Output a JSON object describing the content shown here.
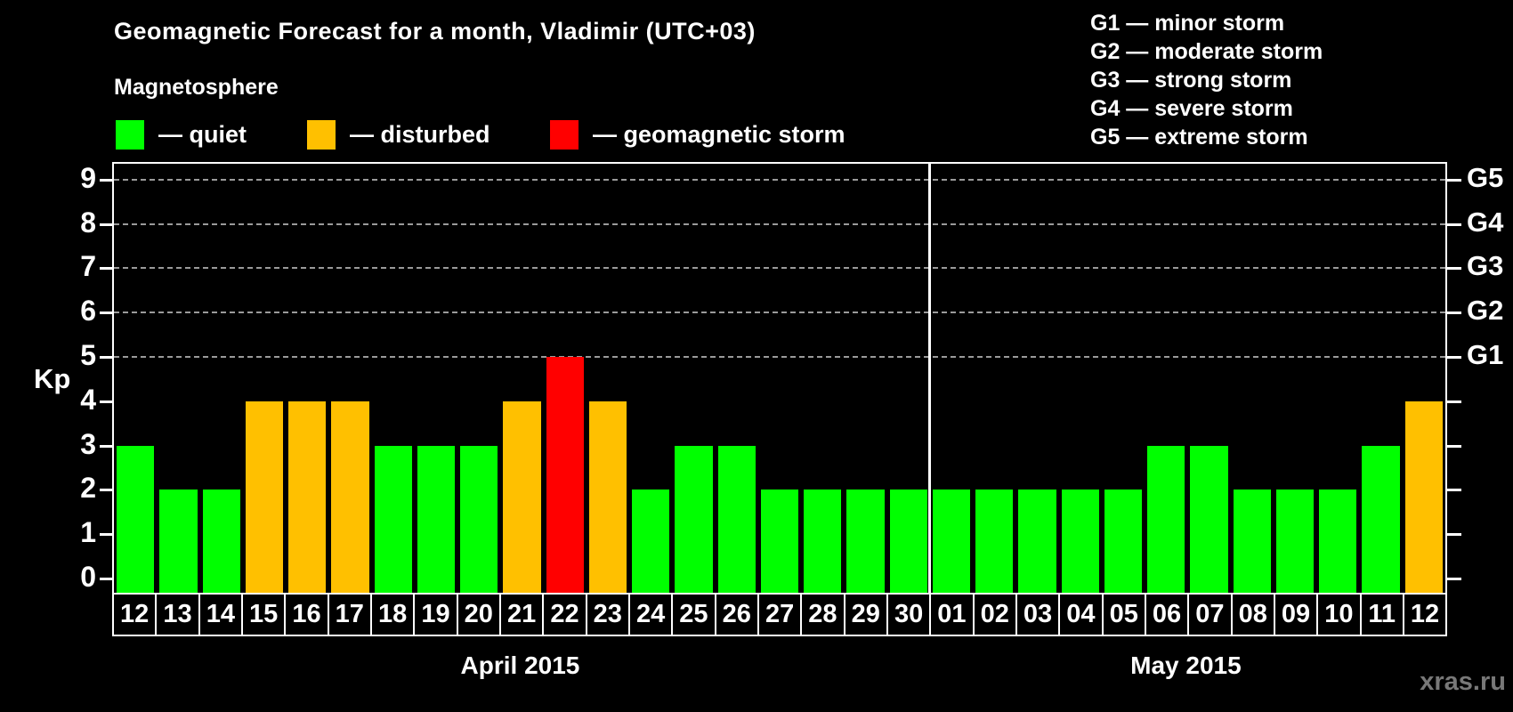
{
  "header": {
    "title": "Geomagnetic Forecast for a month, Vladimir (UTC+03)"
  },
  "legend": {
    "heading": "Magnetosphere",
    "items": [
      {
        "status": "quiet",
        "label": "— quiet"
      },
      {
        "status": "disturbed",
        "label": "— disturbed"
      },
      {
        "status": "storm",
        "label": "— geomagnetic storm"
      }
    ]
  },
  "g_scale_legend": [
    "G1 — minor storm",
    "G2 — moderate storm",
    "G3 — strong storm",
    "G4 — severe storm",
    "G5 — extreme storm"
  ],
  "axes": {
    "y_label": "Kp",
    "kp_ticks": [
      "0",
      "1",
      "2",
      "3",
      "4",
      "5",
      "6",
      "7",
      "8",
      "9"
    ],
    "g_ticks": [
      {
        "label": "G1",
        "kp": 5
      },
      {
        "label": "G2",
        "kp": 6
      },
      {
        "label": "G3",
        "kp": 7
      },
      {
        "label": "G4",
        "kp": 8
      },
      {
        "label": "G5",
        "kp": 9
      }
    ],
    "month_left": "April 2015",
    "month_right": "May 2015"
  },
  "footer": {
    "watermark": "xras.ru"
  },
  "colors": {
    "quiet": "#00ff00",
    "disturbed": "#ffc000",
    "storm": "#ff0000",
    "gridline": "#9a9a9a",
    "axis": "#ffffff",
    "background": "#000000",
    "watermark": "#787878"
  },
  "chart_data": {
    "type": "bar",
    "title": "Geomagnetic Forecast for a month, Vladimir (UTC+03)",
    "xlabel": "",
    "ylabel": "Kp",
    "ylim": [
      0,
      9
    ],
    "grid": "dashed horizontal lines at Kp 5-9 only",
    "gridlines_kp": [
      5,
      6,
      7,
      8,
      9
    ],
    "legend_position": "top",
    "months": [
      {
        "label": "April 2015",
        "days": 19
      },
      {
        "label": "May 2015",
        "days": 12
      }
    ],
    "categories": [
      "12",
      "13",
      "14",
      "15",
      "16",
      "17",
      "18",
      "19",
      "20",
      "21",
      "22",
      "23",
      "24",
      "25",
      "26",
      "27",
      "28",
      "29",
      "30",
      "01",
      "02",
      "03",
      "04",
      "05",
      "06",
      "07",
      "08",
      "09",
      "10",
      "11",
      "12"
    ],
    "values": [
      3,
      2,
      2,
      4,
      4,
      4,
      3,
      3,
      3,
      4,
      5,
      4,
      2,
      3,
      3,
      2,
      2,
      2,
      2,
      2,
      2,
      2,
      2,
      2,
      3,
      3,
      2,
      2,
      2,
      3,
      4
    ],
    "statuses": [
      "quiet",
      "quiet",
      "quiet",
      "disturbed",
      "disturbed",
      "disturbed",
      "quiet",
      "quiet",
      "quiet",
      "disturbed",
      "storm",
      "disturbed",
      "quiet",
      "quiet",
      "quiet",
      "quiet",
      "quiet",
      "quiet",
      "quiet",
      "quiet",
      "quiet",
      "quiet",
      "quiet",
      "quiet",
      "quiet",
      "quiet",
      "quiet",
      "quiet",
      "quiet",
      "quiet",
      "disturbed"
    ],
    "bars": [
      {
        "day": "12",
        "month": "April 2015",
        "kp": 3,
        "status": "quiet"
      },
      {
        "day": "13",
        "month": "April 2015",
        "kp": 2,
        "status": "quiet"
      },
      {
        "day": "14",
        "month": "April 2015",
        "kp": 2,
        "status": "quiet"
      },
      {
        "day": "15",
        "month": "April 2015",
        "kp": 4,
        "status": "disturbed"
      },
      {
        "day": "16",
        "month": "April 2015",
        "kp": 4,
        "status": "disturbed"
      },
      {
        "day": "17",
        "month": "April 2015",
        "kp": 4,
        "status": "disturbed"
      },
      {
        "day": "18",
        "month": "April 2015",
        "kp": 3,
        "status": "quiet"
      },
      {
        "day": "19",
        "month": "April 2015",
        "kp": 3,
        "status": "quiet"
      },
      {
        "day": "20",
        "month": "April 2015",
        "kp": 3,
        "status": "quiet"
      },
      {
        "day": "21",
        "month": "April 2015",
        "kp": 4,
        "status": "disturbed"
      },
      {
        "day": "22",
        "month": "April 2015",
        "kp": 5,
        "status": "storm"
      },
      {
        "day": "23",
        "month": "April 2015",
        "kp": 4,
        "status": "disturbed"
      },
      {
        "day": "24",
        "month": "April 2015",
        "kp": 2,
        "status": "quiet"
      },
      {
        "day": "25",
        "month": "April 2015",
        "kp": 3,
        "status": "quiet"
      },
      {
        "day": "26",
        "month": "April 2015",
        "kp": 3,
        "status": "quiet"
      },
      {
        "day": "27",
        "month": "April 2015",
        "kp": 2,
        "status": "quiet"
      },
      {
        "day": "28",
        "month": "April 2015",
        "kp": 2,
        "status": "quiet"
      },
      {
        "day": "29",
        "month": "April 2015",
        "kp": 2,
        "status": "quiet"
      },
      {
        "day": "30",
        "month": "April 2015",
        "kp": 2,
        "status": "quiet"
      },
      {
        "day": "01",
        "month": "May 2015",
        "kp": 2,
        "status": "quiet"
      },
      {
        "day": "02",
        "month": "May 2015",
        "kp": 2,
        "status": "quiet"
      },
      {
        "day": "03",
        "month": "May 2015",
        "kp": 2,
        "status": "quiet"
      },
      {
        "day": "04",
        "month": "May 2015",
        "kp": 2,
        "status": "quiet"
      },
      {
        "day": "05",
        "month": "May 2015",
        "kp": 2,
        "status": "quiet"
      },
      {
        "day": "06",
        "month": "May 2015",
        "kp": 3,
        "status": "quiet"
      },
      {
        "day": "07",
        "month": "May 2015",
        "kp": 3,
        "status": "quiet"
      },
      {
        "day": "08",
        "month": "May 2015",
        "kp": 2,
        "status": "quiet"
      },
      {
        "day": "09",
        "month": "May 2015",
        "kp": 2,
        "status": "quiet"
      },
      {
        "day": "10",
        "month": "May 2015",
        "kp": 2,
        "status": "quiet"
      },
      {
        "day": "11",
        "month": "May 2015",
        "kp": 3,
        "status": "quiet"
      },
      {
        "day": "12",
        "month": "May 2015",
        "kp": 4,
        "status": "disturbed"
      }
    ]
  }
}
